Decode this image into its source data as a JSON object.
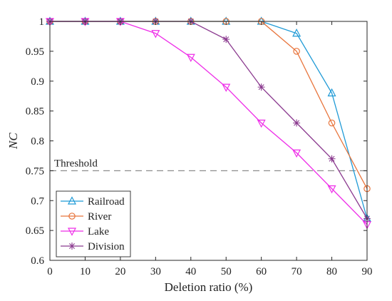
{
  "chart_data": {
    "type": "line",
    "xlabel": "Deletion ratio (%)",
    "ylabel": "NC",
    "xlim": [
      0,
      90
    ],
    "ylim": [
      0.6,
      1.0
    ],
    "x_ticks": [
      "0",
      "10",
      "20",
      "30",
      "40",
      "50",
      "60",
      "70",
      "80",
      "90"
    ],
    "y_ticks": [
      "0.6",
      "0.65",
      "0.7",
      "0.75",
      "0.8",
      "0.85",
      "0.9",
      "0.95",
      "1"
    ],
    "x": [
      0,
      10,
      20,
      30,
      40,
      50,
      60,
      70,
      80,
      90
    ],
    "grid": false,
    "legend_position": "bottom-left",
    "threshold": {
      "value": 0.75,
      "label": "Threshold",
      "color": "#8c8c8c",
      "style": "dashed"
    },
    "series": [
      {
        "name": "Railroad",
        "color": "#1f9ad6",
        "marker": "triangle-up",
        "values": [
          1,
          1,
          1,
          1,
          1,
          1,
          1,
          0.98,
          0.88,
          0.67
        ]
      },
      {
        "name": "River",
        "color": "#e8743b",
        "marker": "circle",
        "values": [
          1,
          1,
          1,
          1,
          1,
          1,
          1,
          0.95,
          0.83,
          0.72
        ]
      },
      {
        "name": "Lake",
        "color": "#ee2ee8",
        "marker": "triangle-down",
        "values": [
          1,
          1,
          1,
          0.98,
          0.94,
          0.89,
          0.83,
          0.78,
          0.72,
          0.66
        ]
      },
      {
        "name": "Division",
        "color": "#8b3a8f",
        "marker": "asterisk",
        "values": [
          1,
          1,
          1,
          1,
          1,
          0.97,
          0.89,
          0.83,
          0.77,
          0.67
        ]
      }
    ]
  }
}
